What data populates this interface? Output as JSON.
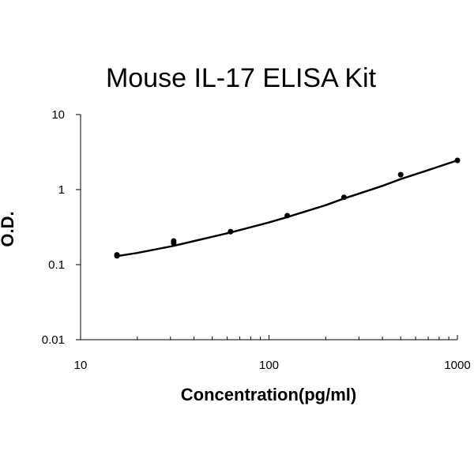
{
  "chart_data": {
    "type": "scatter",
    "title": "Mouse IL-17 ELISA Kit",
    "xlabel": "Concentration(pg/ml)",
    "ylabel": "O.D.",
    "xscale": "log",
    "yscale": "log",
    "xlim": [
      10,
      1000
    ],
    "ylim": [
      0.01,
      10
    ],
    "x_ticks": [
      10,
      100,
      1000
    ],
    "x_tick_labels": [
      "10",
      "100",
      "1000"
    ],
    "y_ticks": [
      0.01,
      0.1,
      1,
      10
    ],
    "y_tick_labels": [
      "0.01",
      "0.1",
      "1",
      "10"
    ],
    "grid": false,
    "series": [
      {
        "x": [
          15.6,
          15.6,
          31.2,
          31.2,
          62.5,
          125,
          250,
          500,
          1000
        ],
        "y": [
          0.135,
          0.131,
          0.207,
          0.194,
          0.275,
          0.45,
          0.79,
          1.58,
          2.45
        ]
      }
    ],
    "trend_curve": {
      "x": [
        15.6,
        20,
        31.2,
        50,
        62.5,
        100,
        125,
        200,
        250,
        400,
        500,
        700,
        1000
      ],
      "y": [
        0.13,
        0.143,
        0.178,
        0.235,
        0.268,
        0.365,
        0.43,
        0.62,
        0.76,
        1.12,
        1.38,
        1.82,
        2.45
      ]
    },
    "colors": {
      "marker": "#000000",
      "curve": "#000000",
      "axis": "#000000"
    }
  }
}
